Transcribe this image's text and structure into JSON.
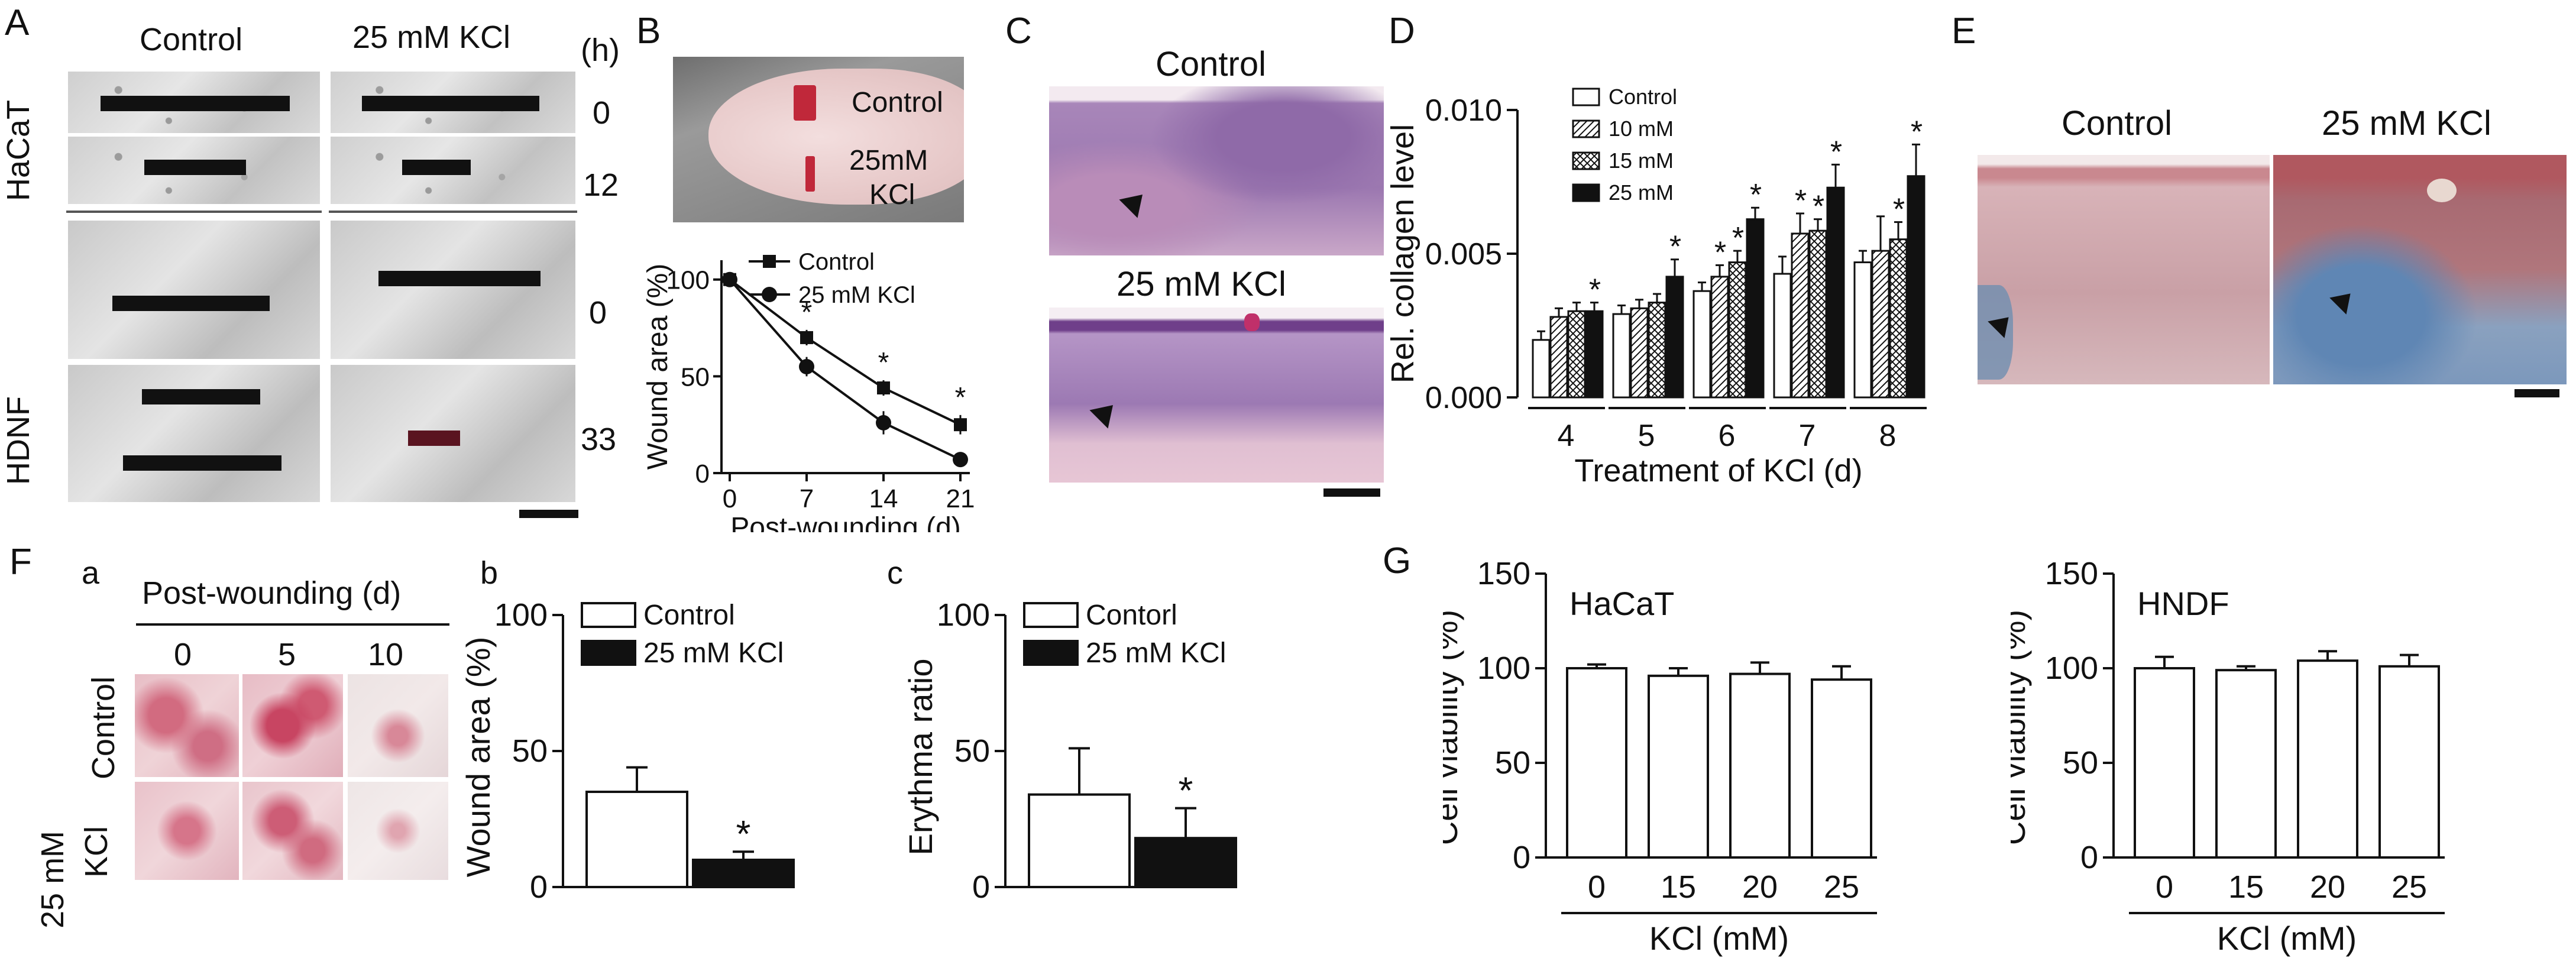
{
  "panel_letters": {
    "A": "A",
    "B": "B",
    "C": "C",
    "D": "D",
    "E": "E",
    "F": "F",
    "G": "G",
    "Fa": "a",
    "Fb": "b",
    "Fc": "c"
  },
  "panelA": {
    "col_control": "Control",
    "col_kcl": "25 mM KCl",
    "hours_label": "(h)",
    "row_hacat": "HaCaT",
    "row_hdnf": "HDNF",
    "time_0a": "0",
    "time_12": "12",
    "time_0b": "0",
    "time_33": "33"
  },
  "panelB": {
    "photo_control": "Control",
    "photo_kcl_1": "25mM",
    "photo_kcl_2": "KCl",
    "chart_data": {
      "type": "line",
      "title": "",
      "xlabel": "Post-wounding (d)",
      "ylabel": "Wound area (%)",
      "x": [
        0,
        7,
        14,
        21
      ],
      "x_ticks": [
        "0",
        "7",
        "14",
        "21"
      ],
      "y_ticks": [
        "0",
        "50",
        "100"
      ],
      "ylim": [
        0,
        110
      ],
      "series": [
        {
          "name": "Control",
          "marker": "square",
          "values": [
            100,
            70,
            44,
            25
          ],
          "err": [
            3,
            4,
            4,
            5
          ]
        },
        {
          "name": "25 mM KCl",
          "marker": "circle",
          "values": [
            100,
            55,
            26,
            7
          ],
          "err": [
            3,
            5,
            6,
            3
          ]
        }
      ],
      "significance": [
        {
          "x": 7,
          "label": "*"
        },
        {
          "x": 14,
          "label": "*"
        },
        {
          "x": 21,
          "label": "*"
        }
      ]
    }
  },
  "panelC": {
    "top_label": "Control",
    "bottom_label": "25 mM KCl"
  },
  "panelD": {
    "chart_data": {
      "type": "bar",
      "xlabel": "Treatment of KCl (d)",
      "ylabel": "Rel. collagen level",
      "categories": [
        "4",
        "5",
        "6",
        "7",
        "8"
      ],
      "y_ticks": [
        "0.000",
        "0.005",
        "0.010"
      ],
      "ylim": [
        0,
        0.01
      ],
      "series": [
        {
          "name": "Control",
          "pattern": "open",
          "values": [
            0.002,
            0.0029,
            0.0037,
            0.0043,
            0.0047
          ],
          "err": [
            0.0003,
            0.0003,
            0.0003,
            0.0006,
            0.0004
          ]
        },
        {
          "name": "10 mM",
          "pattern": "hatch",
          "values": [
            0.0028,
            0.0031,
            0.0042,
            0.0057,
            0.0051
          ],
          "err": [
            0.0003,
            0.0003,
            0.0004,
            0.0007,
            0.0012
          ]
        },
        {
          "name": "15 mM",
          "pattern": "cross",
          "values": [
            0.003,
            0.0033,
            0.0047,
            0.0058,
            0.0055
          ],
          "err": [
            0.0003,
            0.0003,
            0.0004,
            0.0004,
            0.0006
          ]
        },
        {
          "name": "25 mM",
          "pattern": "solid",
          "values": [
            0.003,
            0.0042,
            0.0062,
            0.0073,
            0.0077
          ],
          "err": [
            0.0003,
            0.0006,
            0.0004,
            0.0008,
            0.0011
          ]
        }
      ],
      "significance": [
        {
          "category": "4",
          "series": "25 mM"
        },
        {
          "category": "5",
          "series": "25 mM"
        },
        {
          "category": "6",
          "series": "10 mM"
        },
        {
          "category": "6",
          "series": "15 mM"
        },
        {
          "category": "6",
          "series": "25 mM"
        },
        {
          "category": "7",
          "series": "10 mM"
        },
        {
          "category": "7",
          "series": "15 mM"
        },
        {
          "category": "7",
          "series": "25 mM"
        },
        {
          "category": "8",
          "series": "15 mM"
        },
        {
          "category": "8",
          "series": "25 mM"
        }
      ]
    }
  },
  "panelE": {
    "left_label": "Control",
    "right_label": "25 mM KCl"
  },
  "panelFa": {
    "header": "Post-wounding (d)",
    "days": [
      "0",
      "5",
      "10"
    ],
    "row_control": "Control",
    "row_kcl_1": "25 mM",
    "row_kcl_2": "KCl"
  },
  "panelFb": {
    "chart_data": {
      "type": "bar",
      "ylabel": "Wound area (%)",
      "y_ticks": [
        "0",
        "50",
        "100"
      ],
      "ylim": [
        0,
        100
      ],
      "series": [
        {
          "name": "Control",
          "fill": "open",
          "value": 35,
          "err": 9
        },
        {
          "name": "25 mM KCl",
          "fill": "solid",
          "value": 10,
          "err": 3
        }
      ],
      "significance": [
        {
          "series": "25 mM KCl",
          "label": "*"
        }
      ]
    }
  },
  "panelFc": {
    "chart_data": {
      "type": "bar",
      "ylabel": "Erythma ratio",
      "y_ticks": [
        "0",
        "50",
        "100"
      ],
      "ylim": [
        0,
        100
      ],
      "series": [
        {
          "name": "Contorl",
          "fill": "open",
          "value": 34,
          "err": 17
        },
        {
          "name": "25 mM KCl",
          "fill": "solid",
          "value": 18,
          "err": 11
        }
      ],
      "significance": [
        {
          "series": "25 mM KCl",
          "label": "*"
        }
      ]
    }
  },
  "panelG": {
    "charts": [
      {
        "type": "bar",
        "title": "HaCaT",
        "ylabel": "Cell viability (%)",
        "xlabel": "KCl (mM)",
        "categories": [
          "0",
          "15",
          "20",
          "25"
        ],
        "values": [
          100,
          96,
          97,
          94
        ],
        "err": [
          2,
          4,
          6,
          7
        ],
        "y_ticks": [
          "0",
          "50",
          "100",
          "150"
        ],
        "ylim": [
          0,
          150
        ]
      },
      {
        "type": "bar",
        "title": "HNDF",
        "ylabel": "Cell viability (%)",
        "xlabel": "KCl (mM)",
        "categories": [
          "0",
          "15",
          "20",
          "25"
        ],
        "values": [
          100,
          99,
          104,
          101
        ],
        "err": [
          6,
          2,
          5,
          6
        ],
        "y_ticks": [
          "0",
          "50",
          "100",
          "150"
        ],
        "ylim": [
          0,
          150
        ]
      }
    ]
  },
  "colors": {
    "ink": "#111111",
    "wound_red": "#c0283a",
    "histo_purple": "#9a6fb0",
    "histo_pink": "#d9a3b8",
    "trichrome_blue": "#6f8fb0"
  }
}
